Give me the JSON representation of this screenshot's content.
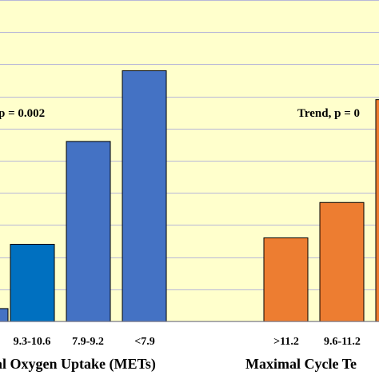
{
  "chart_data": {
    "type": "bar",
    "title": "",
    "ylim": [
      0,
      10
    ],
    "grid": true,
    "plot_background": "#ffffcc",
    "grid_color": "#b8b8d8",
    "groups": [
      {
        "name": "al Oxygen Uptake (METs)",
        "annotation": "p = 0.002",
        "color": "#4472c4",
        "bars": [
          {
            "category": "",
            "value": 0.4,
            "color": "#4472c4",
            "show_label": false
          },
          {
            "category": "9.3-10.6",
            "value": 2.4,
            "color": "#0070c0",
            "show_label": true
          },
          {
            "category": "7.9-9.2",
            "value": 5.6,
            "color": "#4472c4",
            "show_label": true
          },
          {
            "category": "<7.9",
            "value": 7.8,
            "color": "#4472c4",
            "show_label": true
          }
        ]
      },
      {
        "name": "Maximal Cycle Te",
        "annotation": "Trend, p = 0",
        "color": "#ed7d31",
        "bars": [
          {
            "category": ">11.2",
            "value": 2.6,
            "color": "#ed7d31",
            "show_label": true
          },
          {
            "category": "9.6-11.2",
            "value": 3.7,
            "color": "#ed7d31",
            "show_label": true
          },
          {
            "category": "",
            "value": 6.9,
            "color": "#ed7d31",
            "show_label": false
          }
        ]
      }
    ]
  }
}
